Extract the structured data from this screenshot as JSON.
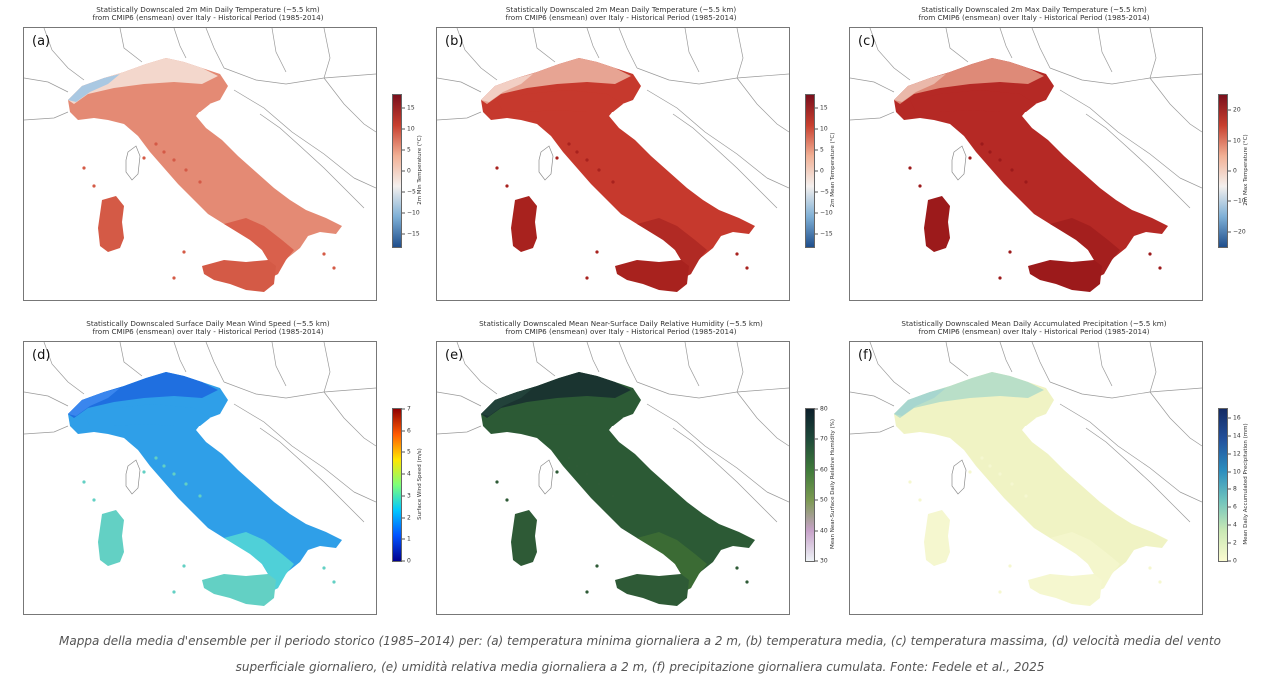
{
  "panels": [
    {
      "label": "(a)",
      "title": "Statistically Downscaled 2m Min Daily Temperature (~5.5 km)\nfrom CMIP6 (ensmean) over Italy - Historical Period (1985-2014)",
      "colorbar": {
        "label": "2m Min Temperature (°C)",
        "ticks": [
          "15",
          "10",
          "5",
          "0",
          "−5",
          "−10",
          "−15"
        ],
        "min": -18,
        "max": 18,
        "tick_values": [
          15,
          10,
          5,
          0,
          -5,
          -10,
          -15
        ],
        "colors": [
          "#1f4e8c",
          "#7fb0d6",
          "#f4f0ee",
          "#f1b095",
          "#c8402f",
          "#7a0f1c"
        ]
      },
      "fill": {
        "main": "#e48a74",
        "south": "#d9604c",
        "islands": "#d45a46",
        "alps": "#f3d7cc",
        "alps_cold": "#a9c8e2"
      }
    },
    {
      "label": "(b)",
      "title": "Statistically Downscaled 2m Mean Daily Temperature (~5.5 km)\nfrom CMIP6 (ensmean) over Italy - Historical Period (1985-2014)",
      "colorbar": {
        "label": "2m Mean Temperature (°C)",
        "ticks": [
          "15",
          "10",
          "5",
          "0",
          "−5",
          "−10",
          "−15"
        ],
        "min": -18,
        "max": 18,
        "tick_values": [
          15,
          10,
          5,
          0,
          -5,
          -10,
          -15
        ],
        "colors": [
          "#1f4e8c",
          "#7fb0d6",
          "#f4f0ee",
          "#f1b095",
          "#c8402f",
          "#7a0f1c"
        ]
      },
      "fill": {
        "main": "#c6392d",
        "south": "#b12a24",
        "islands": "#a8221e",
        "alps": "#e7a493",
        "alps_cold": "#f2cfc4"
      }
    },
    {
      "label": "(c)",
      "title": "Statistically Downscaled 2m Max Daily Temperature (~5.5 km)\nfrom CMIP6 (ensmean) over Italy - Historical Period (1985-2014)",
      "colorbar": {
        "label": "2m Max Temperature (°C)",
        "ticks": [
          "20",
          "10",
          "0",
          "−10",
          "−20"
        ],
        "min": -25,
        "max": 25,
        "tick_values": [
          20,
          10,
          0,
          -10,
          -20
        ],
        "colors": [
          "#1f4e8c",
          "#7fb0d6",
          "#f4f0ee",
          "#f1b095",
          "#c8402f",
          "#7a0f1c"
        ]
      },
      "fill": {
        "main": "#b52925",
        "south": "#a41f1e",
        "islands": "#9c1a1b",
        "alps": "#de8a78",
        "alps_cold": "#eab8aa"
      }
    },
    {
      "label": "(d)",
      "title": "Statistically Downscaled Surface Daily Mean Wind Speed (~5.5 km)\nfrom CMIP6 (ensmean) over Italy - Historical Period (1985-2014)",
      "colorbar": {
        "label": "Surface Wind Speed (m/s)",
        "ticks": [
          "7",
          "6",
          "5",
          "4",
          "3",
          "2",
          "1",
          "0"
        ],
        "min": 0,
        "max": 7,
        "tick_values": [
          7,
          6,
          5,
          4,
          3,
          2,
          1,
          0
        ],
        "colors": [
          "#00008f",
          "#0052ff",
          "#00c8ff",
          "#7dff7a",
          "#ffe600",
          "#ff5a00",
          "#8f0000"
        ]
      },
      "fill": {
        "main": "#2f9fe8",
        "south": "#4fd0d8",
        "islands": "#63d0c4",
        "alps": "#1f6fe0",
        "alps_cold": "#3a86ee"
      }
    },
    {
      "label": "(e)",
      "title": "Statistically Downscaled Mean Near-Surface Daily Relative Humidity (~5.5 km)\nfrom CMIP6 (ensmean) over Italy - Historical Period (1985-2014)",
      "colorbar": {
        "label": "Mean Near-Surface Daily Relative Humidity (%)",
        "ticks": [
          "80",
          "70",
          "60",
          "50",
          "40",
          "30"
        ],
        "min": 30,
        "max": 80,
        "tick_values": [
          80,
          70,
          60,
          50,
          40,
          30
        ],
        "colors": [
          "#eef3f7",
          "#c7a2c9",
          "#7c9a52",
          "#3f7a3a",
          "#1f4a3a",
          "#0c1f2b"
        ]
      },
      "fill": {
        "main": "#2c5a35",
        "south": "#3b6b34",
        "islands": "#2e5a36",
        "alps": "#1a3430",
        "alps_cold": "#22423a"
      }
    },
    {
      "label": "(f)",
      "title": "Statistically Downscaled Mean Daily Accumulated Precipitation (~5.5 km)\nfrom CMIP6 (ensmean) over Italy - Historical Period (1985-2014)",
      "colorbar": {
        "label": "Mean Daily Accumulated Precipitation (mm)",
        "ticks": [
          "16",
          "14",
          "12",
          "10",
          "8",
          "6",
          "4",
          "2",
          "0"
        ],
        "min": 0,
        "max": 17,
        "tick_values": [
          16,
          14,
          12,
          10,
          8,
          6,
          4,
          2,
          0
        ],
        "colors": [
          "#fbfbd0",
          "#c9e8b4",
          "#6fc3bd",
          "#2b8cbe",
          "#23519c",
          "#142a64"
        ]
      },
      "fill": {
        "main": "#f0f3c4",
        "south": "#f4f6cc",
        "islands": "#f5f7cf",
        "alps": "#b9dfc8",
        "alps_cold": "#a7d6cf"
      }
    }
  ],
  "caption": {
    "line1": "Mappa della media d'ensemble per il periodo storico (1985–2014) per: (a) temperatura minima giornaliera a 2 m, (b) temperatura media, (c) temperatura massima, (d) velocità media del vento",
    "line2": "superficiale giornaliero, (e) umidità relativa media giornaliera a 2 m, (f) precipitazione giornaliera cumulata. Fonte: Fedele et al., 2025"
  }
}
